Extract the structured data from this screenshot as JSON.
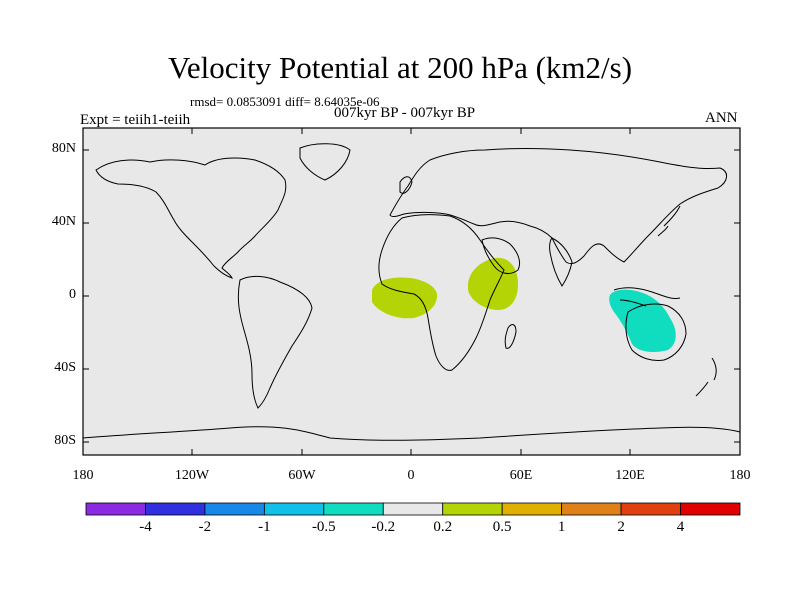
{
  "header": {
    "title": "Velocity Potential at 200 hPa (km2/s)",
    "stats": "rmsd= 0.0853091 diff= 8.64035e-06",
    "subtitle": "007kyr BP - 007kyr BP",
    "experiment": "Expt = teiih1-teiih",
    "season": "ANN"
  },
  "axes": {
    "lat_labels": [
      "80N",
      "40N",
      "0",
      "40S",
      "80S"
    ],
    "lon_labels": [
      "180",
      "120W",
      "60W",
      "0",
      "60E",
      "120E",
      "180"
    ]
  },
  "map_fields": {
    "positive_color": "#b5d406",
    "negative_color": "#10d8c0",
    "background_color": "#e8e8e8"
  },
  "colorbar": {
    "colors": [
      "#8a2be2",
      "#3030e0",
      "#1888e8",
      "#10c0e8",
      "#10dcc0",
      "#e8e8e8",
      "#b5d406",
      "#e0b000",
      "#e08018",
      "#e04010",
      "#e00000"
    ],
    "labels": [
      "-4",
      "-2",
      "-1",
      "-0.5",
      "-0.2",
      "0.2",
      "0.5",
      "1",
      "2",
      "4"
    ]
  }
}
